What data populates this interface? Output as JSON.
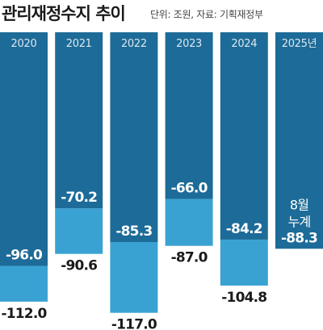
{
  "title": "관리재정수지 추이",
  "subtitle": "단위: 조원, 자료: 기획재정부",
  "colors": {
    "dark": "#1d6b98",
    "light": "#3aa2d3",
    "label_on_bar": "#ffffff",
    "label_below": "#1a1a1a",
    "year_axis": "#dce8ef"
  },
  "chart_data": {
    "type": "bar",
    "title": "관리재정수지 추이",
    "unit_note": "단위: 조원, 자료: 기획재정부",
    "categories": [
      "2020",
      "2021",
      "2022",
      "2023",
      "2024",
      "2025년"
    ],
    "series": [
      {
        "values": [
          -96.0,
          -70.2,
          -85.3,
          -66.0,
          -84.2,
          -88.3
        ],
        "labels": [
          "-96.0",
          "-70.2",
          "-85.3",
          "-66.0",
          "-84.2",
          "-88.3"
        ]
      },
      {
        "values": [
          -112.0,
          -90.6,
          -117.0,
          -87.0,
          -104.8,
          null
        ],
        "labels": [
          "-112.0",
          "-90.6",
          "-117.0",
          "-87.0",
          "-104.8",
          ""
        ]
      }
    ],
    "annotations": [
      {
        "category": "2025년",
        "text_lines": [
          "8월",
          "누계"
        ]
      }
    ],
    "ylim": [
      -120,
      0
    ],
    "grid": false,
    "legend": "none"
  }
}
